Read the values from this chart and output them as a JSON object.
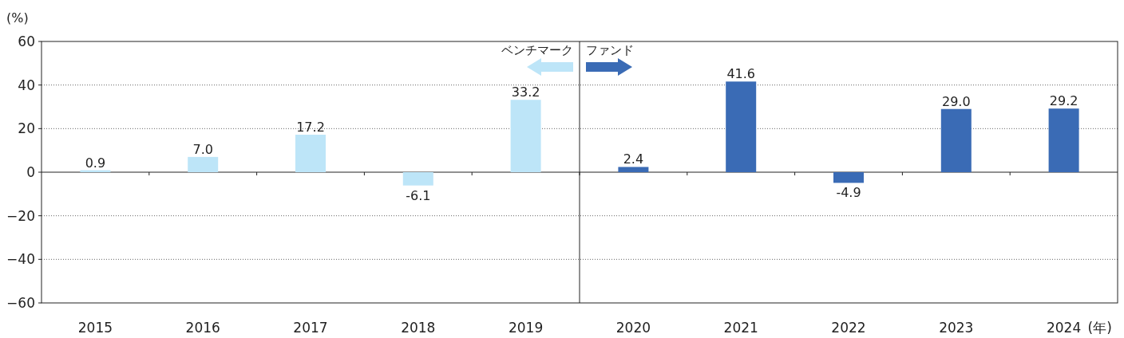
{
  "chart_data": {
    "type": "bar",
    "ylabel": "(%)",
    "xlabel": "(年)",
    "categories": [
      "2015",
      "2016",
      "2017",
      "2018",
      "2019",
      "2020",
      "2021",
      "2022",
      "2023",
      "2024"
    ],
    "values": [
      0.9,
      7.0,
      17.2,
      -6.1,
      33.2,
      2.4,
      41.6,
      -4.9,
      29.0,
      29.2
    ],
    "colors": [
      "#bde5f8",
      "#bde5f8",
      "#bde5f8",
      "#bde5f8",
      "#bde5f8",
      "#3a6bb5",
      "#3a6bb5",
      "#3a6bb5",
      "#3a6bb5",
      "#3a6bb5"
    ],
    "value_labels": [
      "0.9",
      "7.0",
      "17.2",
      "-6.1",
      "33.2",
      "2.4",
      "41.6",
      "-4.9",
      "29.0",
      "29.2"
    ],
    "annotations": [
      "ベンチマーク",
      "ファンド"
    ],
    "ylim": [
      -60,
      60
    ],
    "yticks": [
      -60,
      -40,
      -20,
      0,
      20,
      40,
      60
    ],
    "grid": "y"
  }
}
